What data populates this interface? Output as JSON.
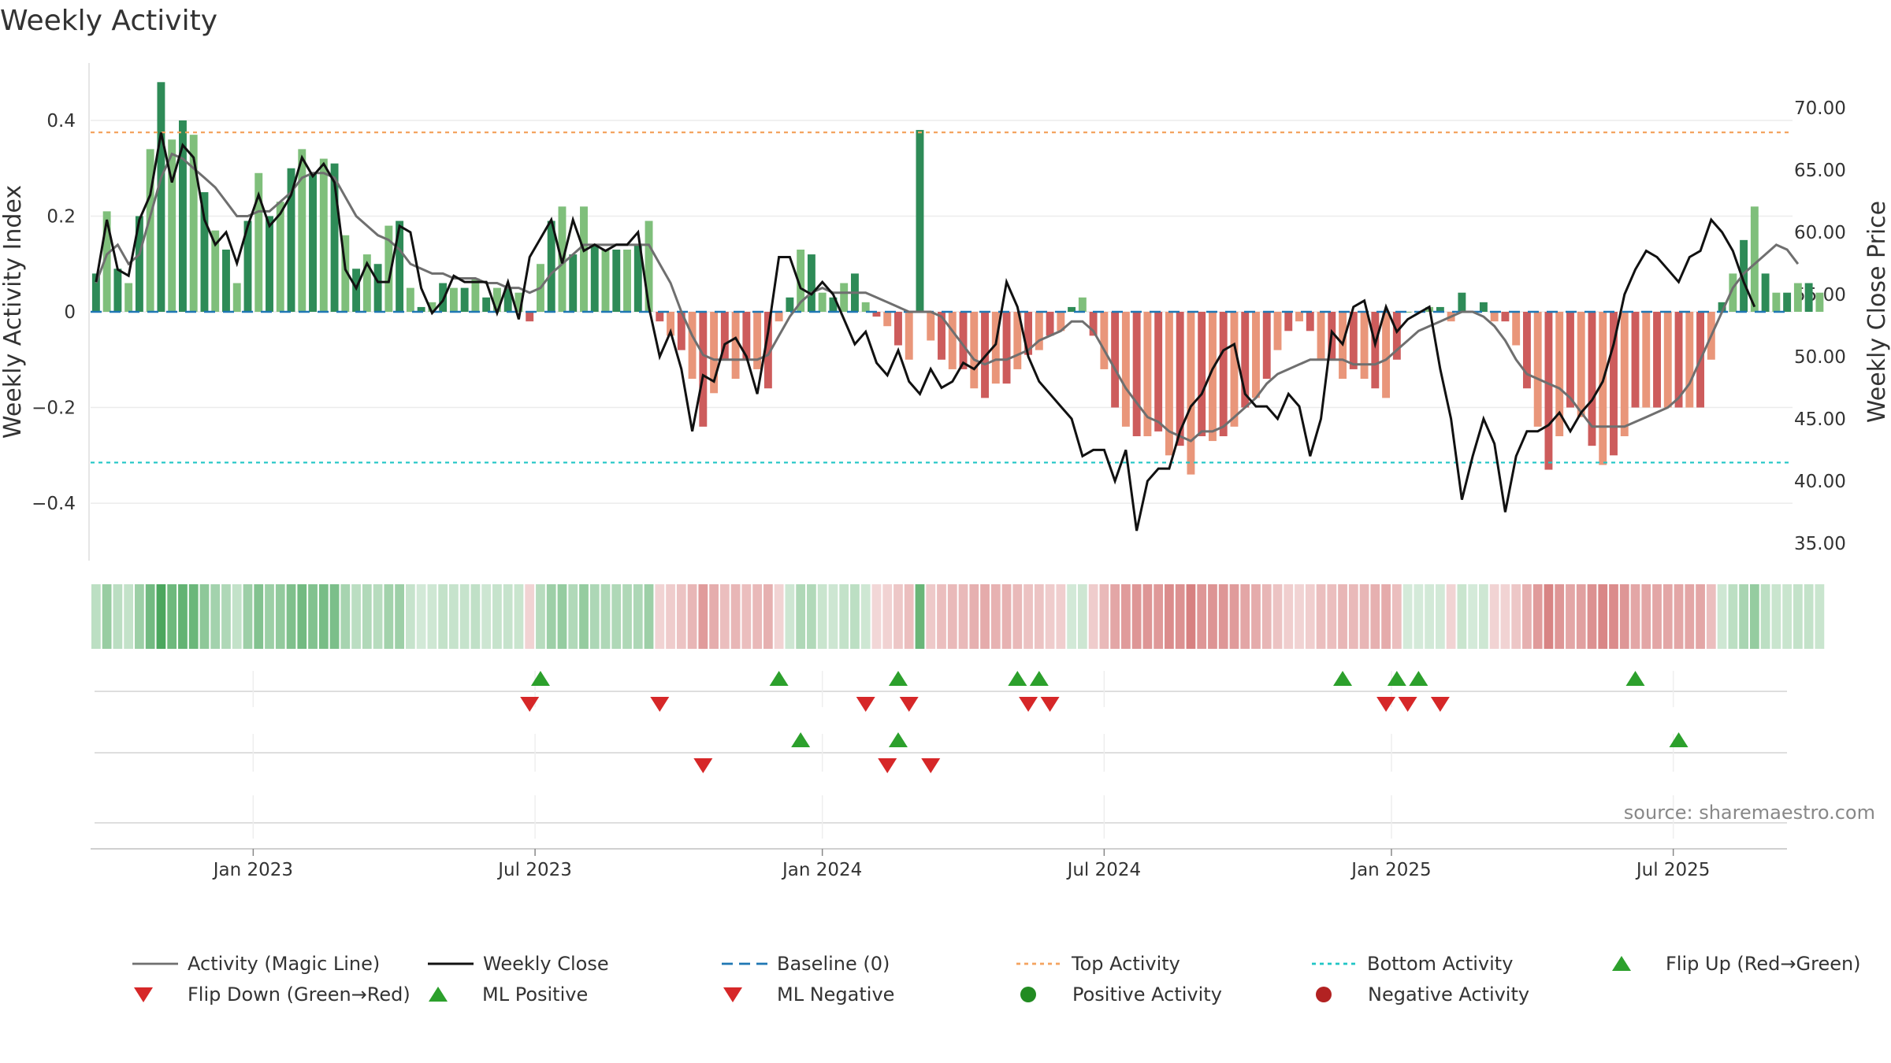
{
  "title": "Weekly Activity",
  "source": "source: sharemaestro.com",
  "chart_data": {
    "type": "bar",
    "title": "Weekly Activity",
    "ylabel": "Weekly Activity Index",
    "y2label": "Weekly Close Price",
    "ylim": [
      -0.52,
      0.52
    ],
    "y2lim": [
      33.6,
      73.6
    ],
    "yticks": [
      -0.4,
      -0.2,
      0,
      0.2,
      0.4
    ],
    "ytick_labels": [
      "−0.4",
      "−0.2",
      "0",
      "0.2",
      "0.4"
    ],
    "y2ticks": [
      35,
      40,
      45,
      50,
      55,
      60,
      65,
      70
    ],
    "y2tick_labels": [
      "35.00",
      "40.00",
      "45.00",
      "50.00",
      "55.00",
      "60.00",
      "65.00",
      "70.00"
    ],
    "xtick_weeks": [
      15,
      41,
      67.5,
      93.5,
      120,
      146
    ],
    "xtick_labels": [
      "Jan 2023",
      "Jul 2023",
      "Jan 2024",
      "Jul 2024",
      "Jan 2025",
      "Jul 2025"
    ],
    "x_range": [
      0,
      157
    ],
    "top_activity": 0.375,
    "bottom_activity": -0.315,
    "activity": [
      0.08,
      0.21,
      0.09,
      0.06,
      0.2,
      0.34,
      0.48,
      0.36,
      0.4,
      0.37,
      0.25,
      0.17,
      0.13,
      0.06,
      0.19,
      0.29,
      0.2,
      0.23,
      0.3,
      0.34,
      0.29,
      0.32,
      0.31,
      0.16,
      0.09,
      0.12,
      0.1,
      0.18,
      0.19,
      0.05,
      0.01,
      0.02,
      0.06,
      0.05,
      0.05,
      0.07,
      0.03,
      0.05,
      0.05,
      0.04,
      -0.02,
      0.1,
      0.19,
      0.22,
      0.12,
      0.22,
      0.14,
      0.13,
      0.13,
      0.13,
      0.14,
      0.19,
      -0.02,
      -0.05,
      -0.08,
      -0.14,
      -0.24,
      -0.17,
      -0.1,
      -0.14,
      -0.1,
      -0.12,
      -0.16,
      -0.02,
      0.03,
      0.13,
      0.12,
      0.04,
      0.03,
      0.06,
      0.08,
      0.02,
      -0.01,
      -0.03,
      -0.07,
      -0.1,
      0.38,
      -0.06,
      -0.1,
      -0.12,
      -0.12,
      -0.16,
      -0.18,
      -0.15,
      -0.15,
      -0.12,
      -0.09,
      -0.08,
      -0.05,
      -0.04,
      0.01,
      0.03,
      -0.05,
      -0.12,
      -0.2,
      -0.24,
      -0.26,
      -0.26,
      -0.25,
      -0.3,
      -0.28,
      -0.34,
      -0.26,
      -0.27,
      -0.26,
      -0.24,
      -0.2,
      -0.18,
      -0.14,
      -0.08,
      -0.04,
      -0.02,
      -0.04,
      -0.1,
      -0.1,
      -0.14,
      -0.12,
      -0.14,
      -0.16,
      -0.18,
      -0.1,
      0.0,
      0.0,
      0.01,
      0.01,
      -0.02,
      0.04,
      0.0,
      0.02,
      -0.02,
      -0.02,
      -0.07,
      -0.16,
      -0.24,
      -0.33,
      -0.26,
      -0.2,
      -0.22,
      -0.28,
      -0.32,
      -0.3,
      -0.26,
      -0.2,
      -0.2,
      -0.2,
      -0.2,
      -0.2,
      -0.2,
      -0.2,
      -0.1,
      0.02,
      0.08,
      0.15,
      0.22,
      0.08,
      0.04,
      0.04,
      0.06,
      0.06,
      0.04
    ],
    "magic_line": [
      0.06,
      0.12,
      0.14,
      0.1,
      0.12,
      0.2,
      0.28,
      0.33,
      0.32,
      0.3,
      0.28,
      0.26,
      0.23,
      0.2,
      0.2,
      0.21,
      0.21,
      0.23,
      0.25,
      0.28,
      0.29,
      0.29,
      0.28,
      0.24,
      0.2,
      0.18,
      0.16,
      0.15,
      0.13,
      0.1,
      0.09,
      0.08,
      0.08,
      0.07,
      0.07,
      0.07,
      0.06,
      0.06,
      0.05,
      0.05,
      0.04,
      0.05,
      0.08,
      0.1,
      0.12,
      0.14,
      0.14,
      0.14,
      0.14,
      0.14,
      0.14,
      0.14,
      0.1,
      0.06,
      0.0,
      -0.05,
      -0.09,
      -0.1,
      -0.1,
      -0.1,
      -0.1,
      -0.1,
      -0.09,
      -0.05,
      -0.01,
      0.02,
      0.04,
      0.05,
      0.04,
      0.04,
      0.04,
      0.04,
      0.03,
      0.02,
      0.01,
      0.0,
      0.0,
      0.0,
      -0.01,
      -0.04,
      -0.07,
      -0.1,
      -0.11,
      -0.1,
      -0.1,
      -0.09,
      -0.08,
      -0.06,
      -0.05,
      -0.04,
      -0.02,
      -0.02,
      -0.04,
      -0.08,
      -0.12,
      -0.16,
      -0.19,
      -0.22,
      -0.23,
      -0.25,
      -0.26,
      -0.27,
      -0.25,
      -0.25,
      -0.24,
      -0.22,
      -0.2,
      -0.18,
      -0.15,
      -0.13,
      -0.12,
      -0.11,
      -0.1,
      -0.1,
      -0.1,
      -0.1,
      -0.11,
      -0.11,
      -0.11,
      -0.1,
      -0.08,
      -0.06,
      -0.04,
      -0.03,
      -0.02,
      -0.01,
      0.0,
      0.0,
      -0.01,
      -0.03,
      -0.06,
      -0.1,
      -0.13,
      -0.14,
      -0.15,
      -0.16,
      -0.18,
      -0.21,
      -0.24,
      -0.24,
      -0.24,
      -0.24,
      -0.23,
      -0.22,
      -0.21,
      -0.2,
      -0.18,
      -0.15,
      -0.1,
      -0.05,
      0.0,
      0.05,
      0.08,
      0.1,
      0.12,
      0.14,
      0.13,
      0.1
    ],
    "weekly_close": [
      56.0,
      61.0,
      57.0,
      56.5,
      61.0,
      63.0,
      68.0,
      64.0,
      67.0,
      66.0,
      61.0,
      59.0,
      60.0,
      57.5,
      60.5,
      63.0,
      60.5,
      61.5,
      63.0,
      66.0,
      64.5,
      65.5,
      64.0,
      57.0,
      55.5,
      57.5,
      56.0,
      56.0,
      60.5,
      60.0,
      55.5,
      53.5,
      54.5,
      56.5,
      56.0,
      56.0,
      56.0,
      53.5,
      56.0,
      53.0,
      58.0,
      59.5,
      61.0,
      57.5,
      61.0,
      58.5,
      59.0,
      58.5,
      59.0,
      59.0,
      60.0,
      54.0,
      50.0,
      52.0,
      49.0,
      44.0,
      48.5,
      48.0,
      51.0,
      51.5,
      50.0,
      47.0,
      52.0,
      58.0,
      58.0,
      55.5,
      55.0,
      56.0,
      55.0,
      53.0,
      51.0,
      52.0,
      49.5,
      48.5,
      50.5,
      48.0,
      47.0,
      49.0,
      47.5,
      48.0,
      49.5,
      49.0,
      50.0,
      51.0,
      56.0,
      54.0,
      50.0,
      48.0,
      47.0,
      46.0,
      45.0,
      42.0,
      42.5,
      42.5,
      40.0,
      42.5,
      36.0,
      40.0,
      41.0,
      41.0,
      44.0,
      46.0,
      47.0,
      49.0,
      50.5,
      51.0,
      47.0,
      46.0,
      46.0,
      45.0,
      47.0,
      46.0,
      42.0,
      45.0,
      52.0,
      51.0,
      54.0,
      54.5,
      51.0,
      54.0,
      52.0,
      53.0,
      53.5,
      54.0,
      49.0,
      45.0,
      38.5,
      42.0,
      45.0,
      43.0,
      37.5,
      42.0,
      44.0,
      44.0,
      44.5,
      45.5,
      44.0,
      45.5,
      46.5,
      48.0,
      51.0,
      55.0,
      57.0,
      58.5,
      58.0,
      57.0,
      56.0,
      58.0,
      58.5,
      61.0,
      60.0,
      58.5,
      56.0,
      54.0
    ],
    "flip_up_weeks": [
      41,
      63,
      74,
      85,
      87,
      115,
      120,
      122,
      142
    ],
    "flip_down_weeks": [
      40,
      52,
      71,
      75,
      86,
      88,
      119,
      121,
      124
    ],
    "ml_positive_weeks": [
      65,
      74,
      146
    ],
    "ml_negative_weeks": [
      56,
      73,
      77
    ],
    "legend": [
      "Activity (Magic Line)",
      "Weekly Close",
      "Baseline (0)",
      "Top Activity",
      "Bottom Activity",
      "Flip Up (Red→Green)",
      "Flip Down (Green→Red)",
      "ML Positive",
      "ML Negative",
      "Positive Activity",
      "Negative Activity"
    ],
    "colors": {
      "strong_positive": "#2e8b57",
      "weak_positive": "#7fbf7b",
      "strong_negative": "#cd5c5c",
      "weak_negative": "#e9967a",
      "magic_line": "#6f6f6f",
      "close": "#111111",
      "baseline": "#1f77b4",
      "top": "#f4a460",
      "bottom": "#20c5c5",
      "flip_up": "#2ca02c",
      "flip_down": "#d62728",
      "positive_dot": "#228b22",
      "negative_dot": "#b22222"
    }
  }
}
